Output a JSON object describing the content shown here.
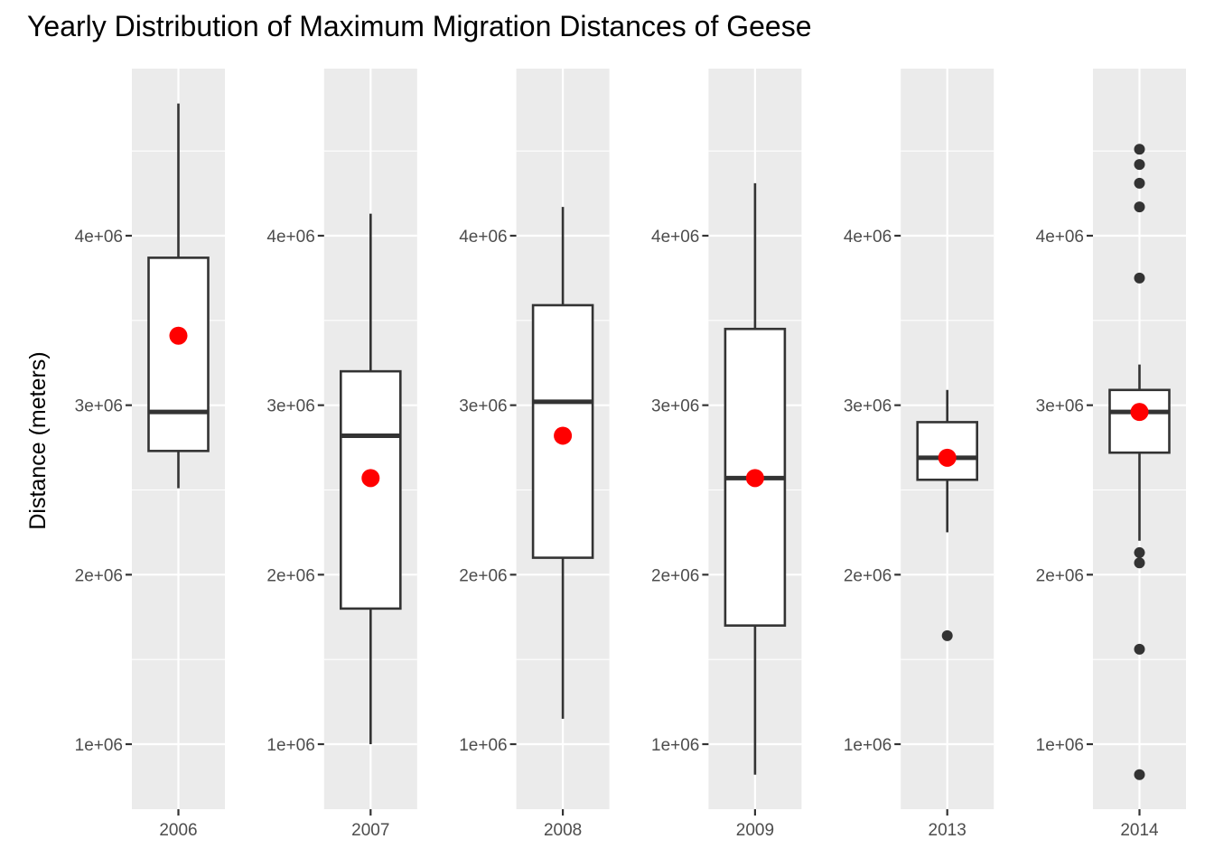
{
  "chart_data": {
    "type": "boxplot",
    "title": "Yearly Distribution of Maximum Migration Distances of Geese",
    "xlabel": "",
    "ylabel": "Distance (meters)",
    "ylim": [
      620000,
      4900000
    ],
    "y_ticks": [
      1000000,
      2000000,
      3000000,
      4000000
    ],
    "y_tick_labels": [
      "1e+06",
      "2e+06",
      "3e+06",
      "4e+06"
    ],
    "facets": "one panel per year, free x, shared y scale",
    "colors": {
      "panel": "#ebebeb",
      "grid": "#ffffff",
      "box_line": "#333333",
      "mean": "#ff0000"
    },
    "panels": [
      {
        "year": "2006",
        "lower_whisker": 2510000,
        "q1": 2730000,
        "median": 2960000,
        "q3": 3870000,
        "upper_whisker": 4780000,
        "mean": 3410000,
        "outliers": []
      },
      {
        "year": "2007",
        "lower_whisker": 1000000,
        "q1": 1800000,
        "median": 2820000,
        "q3": 3200000,
        "upper_whisker": 4130000,
        "mean": 2570000,
        "outliers": []
      },
      {
        "year": "2008",
        "lower_whisker": 1150000,
        "q1": 2100000,
        "median": 3020000,
        "q3": 3590000,
        "upper_whisker": 4170000,
        "mean": 2820000,
        "outliers": []
      },
      {
        "year": "2009",
        "lower_whisker": 820000,
        "q1": 1700000,
        "median": 2570000,
        "q3": 3450000,
        "upper_whisker": 4310000,
        "mean": 2570000,
        "outliers": []
      },
      {
        "year": "2013",
        "lower_whisker": 2250000,
        "q1": 2560000,
        "median": 2690000,
        "q3": 2900000,
        "upper_whisker": 3090000,
        "mean": 2690000,
        "outliers": [
          1640000
        ]
      },
      {
        "year": "2014",
        "lower_whisker": 2200000,
        "q1": 2720000,
        "median": 2960000,
        "q3": 3090000,
        "upper_whisker": 3240000,
        "mean": 2960000,
        "outliers": [
          820000,
          1560000,
          2070000,
          2130000,
          3750000,
          4170000,
          4310000,
          4420000,
          4510000
        ]
      }
    ]
  }
}
